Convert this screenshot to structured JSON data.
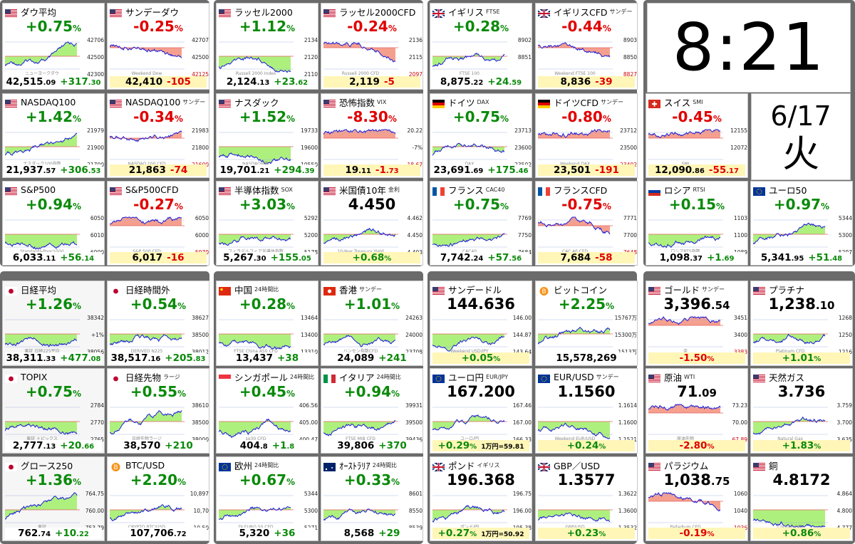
{
  "clock": {
    "time": "8:21",
    "date": "6/17",
    "weekday": "火"
  },
  "colors": {
    "up": "#0a8a0a",
    "down": "#e00000",
    "fill_up": "#aef07e",
    "fill_down": "#f5a08e",
    "line": "#1b1bd8",
    "prev_close": "#e06060",
    "frame": "#6b6b6b"
  },
  "tiles": [
    {
      "name": "ダウ平均",
      "sub": "",
      "flag": "us",
      "pct": "+0.75",
      "dir": "up",
      "price_main": "42,515",
      "price_dec": ".09",
      "chg_main": "+317",
      "chg_dec": ".30",
      "labels": [
        "42706",
        "42500",
        "42300"
      ],
      "watermark": "ニューヨークダウ"
    },
    {
      "name": "サンデーダウ",
      "sub": "",
      "flag": "us",
      "pct": "-0.25",
      "dir": "dn",
      "price_main": "42,410",
      "price_dec": "",
      "chg_main": "-105",
      "chg_dec": "",
      "labels": [
        "42707",
        "42500",
        "42125"
      ],
      "watermark": "Weekend Dow"
    },
    {
      "name": "ラッセル2000",
      "sub": "",
      "flag": "us",
      "pct": "+1.12",
      "dir": "up",
      "price_main": "2,124",
      "price_dec": ".13",
      "chg_main": "+23",
      "chg_dec": ".62",
      "labels": [
        "2134",
        "2120",
        "2110"
      ],
      "watermark": "Russell 2000 Index"
    },
    {
      "name": "ラッセル2000CFD",
      "sub": "",
      "flag": "us",
      "pct": "-0.24",
      "dir": "dn",
      "price_main": "2,119",
      "price_dec": "",
      "chg_main": "-5",
      "chg_dec": "",
      "labels": [
        "2136",
        "2115",
        "2097"
      ],
      "watermark": "Russell 2000 CFD"
    },
    {
      "name": "イギリス",
      "sub": "FTSE",
      "flag": "uk",
      "pct": "+0.28",
      "dir": "up",
      "price_main": "8,875",
      "price_dec": ".22",
      "chg_main": "+24",
      "chg_dec": ".59",
      "labels": [
        "8902",
        "8851",
        ""
      ],
      "watermark": "FTSE 100"
    },
    {
      "name": "イギリスCFD",
      "sub": "サンデー",
      "flag": "uk",
      "pct": "-0.44",
      "dir": "dn",
      "price_main": "8,836",
      "price_dec": "",
      "chg_main": "-39",
      "chg_dec": "",
      "labels": [
        "8903",
        "8850",
        "8827"
      ],
      "watermark": "Weekend FTSE 100"
    },
    {
      "name": "NASDAQ100",
      "sub": "",
      "flag": "us",
      "pct": "+1.42",
      "dir": "up",
      "price_main": "21,937",
      "price_dec": ".57",
      "chg_main": "+306",
      "chg_dec": ".53",
      "labels": [
        "21979",
        "21900",
        "21700"
      ],
      "watermark": "ナスダック100指数"
    },
    {
      "name": "NASDAQ100",
      "sub": "サンデー",
      "flag": "us",
      "pct": "-0.34",
      "dir": "dn",
      "price_main": "21,863",
      "price_dec": "",
      "chg_main": "-74",
      "chg_dec": "",
      "labels": [
        "21983",
        "21800",
        "21600"
      ],
      "watermark": "NASDAQ 100 CFD"
    },
    {
      "name": "ナスダック",
      "sub": "",
      "flag": "us",
      "pct": "+1.52",
      "dir": "up",
      "price_main": "19,701",
      "price_dec": ".21",
      "chg_main": "+294",
      "chg_dec": ".39",
      "labels": [
        "19733",
        "19600",
        "19550"
      ],
      "watermark": "NASDAQ指数"
    },
    {
      "name": "恐怖指数",
      "sub": "VIX",
      "flag": "us",
      "pct": "-8.30",
      "dir": "dn",
      "price_main": "19",
      "price_dec": ".11",
      "chg_main": "-1",
      "chg_dec": ".73",
      "labels": [
        "20.22",
        "-7%",
        "18.67"
      ],
      "watermark": ""
    },
    {
      "name": "ドイツ",
      "sub": "DAX",
      "flag": "de",
      "pct": "+0.75",
      "dir": "up",
      "price_main": "23,691",
      "price_dec": ".69",
      "chg_main": "+175",
      "chg_dec": ".46",
      "labels": [
        "23713",
        "23600",
        "23502"
      ],
      "watermark": "DAX"
    },
    {
      "name": "ドイツCFD",
      "sub": "サンデー",
      "flag": "de",
      "pct": "-0.80",
      "dir": "dn",
      "price_main": "23,501",
      "price_dec": "",
      "chg_main": "-191",
      "chg_dec": "",
      "labels": [
        "23712",
        "23500",
        "23402"
      ],
      "watermark": "Weekend DAX"
    },
    {
      "name": "スイス",
      "sub": "SMI",
      "flag": "ch",
      "pct": "-0.45",
      "dir": "dn",
      "price_main": "12,090",
      "price_dec": ".86",
      "chg_main": "-55",
      "chg_dec": ".17",
      "labels": [
        "12155",
        "12072",
        ""
      ],
      "watermark": "SMI"
    },
    {
      "name": "S&P500",
      "sub": "",
      "flag": "us",
      "pct": "+0.94",
      "dir": "up",
      "price_main": "6,033",
      "price_dec": ".11",
      "chg_main": "+56",
      "chg_dec": ".14",
      "labels": [
        "6050",
        "6010",
        "6000"
      ],
      "watermark": "Standard&Poor's500"
    },
    {
      "name": "S&P500CFD",
      "sub": "",
      "flag": "us",
      "pct": "-0.27",
      "dir": "dn",
      "price_main": "6,017",
      "price_dec": "",
      "chg_main": "-16",
      "chg_dec": "",
      "labels": [
        "6050",
        "6000",
        "5970"
      ],
      "watermark": "S&P 500 CFD"
    },
    {
      "name": "半導体指数",
      "sub": "SOX",
      "flag": "us",
      "pct": "+3.03",
      "dir": "up",
      "price_main": "5,267",
      "price_dec": ".30",
      "chg_main": "+155",
      "chg_dec": ".05",
      "labels": [
        "5292",
        "5200",
        "5178"
      ],
      "watermark": "フィラデルフィア半導体指数"
    },
    {
      "name": "米国債10年",
      "sub": "金利",
      "flag": "us",
      "pct": "4.450",
      "dir": "lvl",
      "price_main": "",
      "price_dec": "",
      "chg_main": "+0.68",
      "chg_dec": "%",
      "labels": [
        "4.462",
        "4.450",
        "4.403"
      ],
      "watermark": "10-Year Treasury Yield"
    },
    {
      "name": "フランス",
      "sub": "CAC40",
      "flag": "fr",
      "pct": "+0.75",
      "dir": "up",
      "price_main": "7,742",
      "price_dec": ".24",
      "chg_main": "+57",
      "chg_dec": ".56",
      "labels": [
        "7769",
        "7750",
        "7684"
      ],
      "watermark": "CAC40"
    },
    {
      "name": "フランスCFD",
      "sub": "",
      "flag": "fr",
      "pct": "-0.75",
      "dir": "dn",
      "price_main": "7,684",
      "price_dec": "",
      "chg_main": "-58",
      "chg_dec": "",
      "labels": [
        "7771",
        "7700",
        "7648"
      ],
      "watermark": "CAC 40 CFD"
    },
    {
      "name": "ロシア",
      "sub": "RTSI",
      "flag": "ru",
      "pct": "+0.15",
      "dir": "up",
      "price_main": "1,098",
      "price_dec": ".37",
      "chg_main": "+1",
      "chg_dec": ".69",
      "labels": [
        "1103",
        "1100",
        "1089"
      ],
      "watermark": "ロシアRTS指数"
    },
    {
      "name": "ユーロ50",
      "sub": "",
      "flag": "eu",
      "pct": "+0.97",
      "dir": "up",
      "price_main": "5,341",
      "price_dec": ".95",
      "chg_main": "+51",
      "chg_dec": ".48",
      "labels": [
        "5344",
        "5300",
        "5297"
      ],
      "watermark": ""
    },
    {
      "name": "日経平均",
      "sub": "",
      "flag": "jp",
      "pct": "+1.26",
      "dir": "up",
      "price_main": "38,311",
      "price_dec": ".33",
      "chg_main": "+477",
      "chg_dec": ".08",
      "labels": [
        "38342",
        "+1%",
        "38056"
      ],
      "watermark": "東証 日経225平均"
    },
    {
      "name": "日経時間外",
      "sub": "",
      "flag": "jp",
      "pct": "+0.54",
      "dir": "up",
      "price_main": "38,517",
      "price_dec": ".16",
      "chg_main": "+205",
      "chg_dec": ".83",
      "labels": [
        "38627",
        "38500",
        "38012"
      ],
      "watermark": "DERIVED N225"
    },
    {
      "name": "中国",
      "sub": "24時間比",
      "flag": "cn",
      "pct": "+0.28",
      "dir": "up",
      "price_main": "13,437",
      "price_dec": "",
      "chg_main": "+38",
      "chg_dec": "",
      "labels": [
        "13464",
        "13400",
        "13310"
      ],
      "watermark": "FTSE China A50 CFD"
    },
    {
      "name": "香港",
      "sub": "サンデー",
      "flag": "hk",
      "pct": "+1.01",
      "dir": "up",
      "price_main": "24,089",
      "price_dec": "",
      "chg_main": "+241",
      "chg_dec": "",
      "labels": [
        "24263",
        "24000",
        "23708"
      ],
      "watermark": "ハンセン指数CFD"
    },
    {
      "name": "サンデードル",
      "sub": "",
      "flag": "us",
      "pct": "144.636",
      "dir": "lvl",
      "price_main": "",
      "price_dec": "",
      "chg_main": "+0.05",
      "chg_dec": "%",
      "labels": [
        "146.00",
        "144.87",
        "143.64"
      ],
      "watermark": "Weekend USD/JPY"
    },
    {
      "name": "ビットコイン",
      "sub": "",
      "flag": "btc",
      "pct": "+2.25",
      "dir": "up",
      "price_main": "15,578,269",
      "price_dec": "",
      "chg_main": "",
      "chg_dec": "",
      "labels": [
        "15767万",
        "15300万",
        "1513万"
      ],
      "watermark": ""
    },
    {
      "name": "ゴールド",
      "sub": "サンデー",
      "flag": "us",
      "pct": "3,396",
      "pct_dec": ".54",
      "dir": "lvl",
      "price_main": "",
      "price_dec": "",
      "chg_main": "-1.50",
      "chg_dec": "%",
      "labels": [
        "3451",
        "3400",
        "3383"
      ],
      "watermark": "金"
    },
    {
      "name": "プラチナ",
      "sub": "",
      "flag": "us",
      "pct": "1,238",
      "pct_dec": ".10",
      "dir": "lvl",
      "price_main": "",
      "price_dec": "",
      "chg_main": "+1.01",
      "chg_dec": "%",
      "labels": [
        "1268",
        "1250",
        "1216"
      ],
      "watermark": "Platinum CFD"
    },
    {
      "name": "TOPIX",
      "sub": "",
      "flag": "jp",
      "pct": "+0.75",
      "dir": "up",
      "price_main": "2,777",
      "price_dec": ".13",
      "chg_main": "+20",
      "chg_dec": ".66",
      "labels": [
        "2784",
        "2770",
        "2765"
      ],
      "watermark": "東証 トピックス"
    },
    {
      "name": "日経先物",
      "sub": "ラージ",
      "flag": "jp",
      "pct": "+0.55",
      "dir": "up",
      "price_main": "38,570",
      "price_dec": "",
      "chg_main": "+210",
      "chg_dec": "",
      "labels": [
        "38610",
        "38500",
        "38000"
      ],
      "watermark": "日経先物ラージ"
    },
    {
      "name": "シンガポール",
      "sub": "24時間比",
      "flag": "sg",
      "pct": "+0.45",
      "dir": "up",
      "price_main": "404",
      "price_dec": ".8",
      "chg_main": "+1",
      "chg_dec": ".8",
      "labels": [
        "406.56",
        "405.00",
        "400.47"
      ],
      "watermark": "sg30 CFD"
    },
    {
      "name": "イタリア",
      "sub": "24時間比",
      "flag": "it",
      "pct": "+0.94",
      "dir": "up",
      "price_main": "39,806",
      "price_dec": "",
      "chg_main": "+370",
      "chg_dec": "",
      "labels": [
        "39931",
        "39500",
        "39436"
      ],
      "watermark": "FTSE MIB CFD"
    },
    {
      "name": "ユーロ円",
      "sub": "EUR/JPY",
      "flag": "eu",
      "pct": "167.200",
      "dir": "lvl",
      "price_main": "",
      "price_dec": "",
      "chg_main": "+0.29",
      "chg_dec": "%",
      "chg_extra": "1万円=59.81",
      "labels": [
        "167.46",
        "167.00",
        "166.33"
      ],
      "watermark": "ユーロ/円"
    },
    {
      "name": "EUR/USD",
      "sub": "サンデー",
      "flag": "eu",
      "pct": "1.1560",
      "dir": "lvl",
      "price_main": "",
      "price_dec": "",
      "chg_main": "+0.24",
      "chg_dec": "%",
      "labels": [
        "1.1614",
        "1.1600",
        "1.1521"
      ],
      "watermark": "Weekend EUR/USD"
    },
    {
      "name": "原油",
      "sub": "WTI",
      "flag": "us",
      "pct": "71",
      "pct_dec": ".09",
      "dir": "lvl",
      "price_main": "",
      "price_dec": "",
      "chg_main": "-2.80",
      "chg_dec": "%",
      "labels": [
        "73.23",
        "70.00",
        "67.89"
      ],
      "watermark": "原油先物"
    },
    {
      "name": "天然ガス",
      "sub": "",
      "flag": "us",
      "pct": "3.736",
      "dir": "lvl",
      "price_main": "",
      "price_dec": "",
      "chg_main": "+1.83",
      "chg_dec": "%",
      "labels": [
        "3.759",
        "3.700",
        "3.635"
      ],
      "watermark": "Natural Gas"
    },
    {
      "name": "グロース250",
      "sub": "",
      "flag": "jp",
      "pct": "+1.36",
      "dir": "up",
      "price_main": "762",
      "price_dec": ".74",
      "chg_main": "+10",
      "chg_dec": ".22",
      "labels": [
        "764.75",
        "760.00",
        "753.79"
      ],
      "watermark": "東証"
    },
    {
      "name": "BTC/USD",
      "sub": "",
      "flag": "btc",
      "pct": "+2.20",
      "dir": "up",
      "price_main": "107,706",
      "price_dec": ".72",
      "chg_main": "",
      "chg_dec": "",
      "labels": [
        "10,897",
        "10,70",
        "10,50"
      ],
      "watermark": "CRYPTO BTC/USD"
    },
    {
      "name": "欧州",
      "sub": "24時間比",
      "flag": "eu",
      "pct": "+0.67",
      "dir": "up",
      "price_main": "5,320",
      "price_dec": "",
      "chg_main": "+36",
      "chg_dec": "",
      "labels": [
        "5344",
        "5300",
        "5271"
      ],
      "watermark": "DJ EURO 50 CFD"
    },
    {
      "name": "ｵｰｽﾄﾗﾘｱ",
      "sub": "24時間比",
      "flag": "au",
      "pct": "+0.33",
      "dir": "up",
      "price_main": "8,568",
      "price_dec": "",
      "chg_main": "+29",
      "chg_dec": "",
      "labels": [
        "8601",
        "8550",
        "8539"
      ],
      "watermark": ""
    },
    {
      "name": "ポンド",
      "sub": "イギリス",
      "flag": "uk",
      "pct": "196.368",
      "dir": "lvl",
      "price_main": "",
      "price_dec": "",
      "chg_main": "+0.27",
      "chg_dec": "%",
      "chg_extra": "1万円=50.92",
      "labels": [
        "196.75",
        "196.00",
        "195.38"
      ],
      "watermark": "ポンド/円"
    },
    {
      "name": "GBP／USD",
      "sub": "",
      "flag": "uk",
      "pct": "1.3577",
      "dir": "lvl",
      "price_main": "",
      "price_dec": "",
      "chg_main": "+0.23",
      "chg_dec": "%",
      "labels": [
        "1.3622",
        "1.3600",
        "1.3532"
      ],
      "watermark": "GBP/USD"
    },
    {
      "name": "パラジウム",
      "sub": "",
      "flag": "us",
      "pct": "1,038",
      "pct_dec": ".75",
      "dir": "lvl",
      "price_main": "",
      "price_dec": "",
      "chg_main": "-0.19",
      "chg_dec": "%",
      "labels": [
        "1060",
        "1040",
        "1036"
      ],
      "watermark": "Palladium CFD"
    },
    {
      "name": "銅",
      "sub": "",
      "flag": "us",
      "pct": "4.8172",
      "dir": "lvl",
      "price_main": "",
      "price_dec": "",
      "chg_main": "+0.86",
      "chg_dec": "%",
      "labels": [
        "4.864",
        "4.800",
        "4.777"
      ],
      "watermark": "Copper CFD"
    }
  ]
}
